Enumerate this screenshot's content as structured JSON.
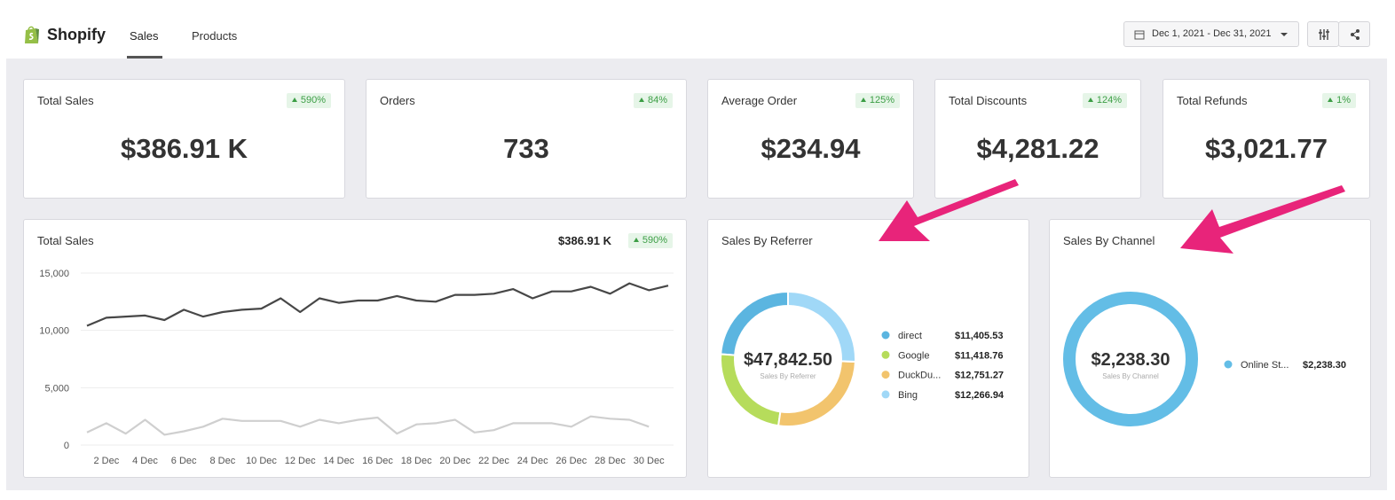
{
  "header": {
    "brand": "Shopify",
    "tabs": [
      "Sales",
      "Products"
    ],
    "date_range": "Dec 1, 2021 - Dec 31, 2021"
  },
  "kpis": [
    {
      "title": "Total Sales",
      "change": "590%",
      "value": "$386.91 K"
    },
    {
      "title": "Orders",
      "change": "84%",
      "value": "733"
    },
    {
      "title": "Average Order",
      "change": "125%",
      "value": "$234.94"
    },
    {
      "title": "Total Discounts",
      "change": "124%",
      "value": "$4,281.22"
    },
    {
      "title": "Total Refunds",
      "change": "1%",
      "value": "$3,021.77"
    }
  ],
  "chart_data": [
    {
      "type": "line",
      "title": "Total Sales",
      "total": "$386.91 K",
      "change": "590%",
      "categories": [
        null,
        "2 Dec",
        null,
        "4 Dec",
        null,
        "6 Dec",
        null,
        "8 Dec",
        null,
        "10 Dec",
        null,
        "12 Dec",
        null,
        "14 Dec",
        null,
        "16 Dec",
        null,
        "18 Dec",
        null,
        "20 Dec",
        null,
        "22 Dec",
        null,
        "24 Dec",
        null,
        "26 Dec",
        null,
        "28 Dec",
        null,
        "30 Dec",
        null
      ],
      "series": [
        {
          "color": "#474747",
          "values": [
            10400,
            11100,
            11200,
            11300,
            10900,
            11800,
            11200,
            11600,
            11800,
            11900,
            12800,
            11600,
            12800,
            12400,
            12600,
            12600,
            13000,
            12600,
            12500,
            13100,
            13100,
            13200,
            13600,
            12800,
            13400,
            13400,
            13800,
            13200,
            14100,
            13500,
            13900
          ]
        },
        {
          "color": "#cfcfcf",
          "values": [
            1100,
            1900,
            1000,
            2200,
            900,
            1200,
            1600,
            2300,
            2100,
            2100,
            2100,
            1600,
            2200,
            1900,
            2200,
            2400,
            1000,
            1800,
            1900,
            2200,
            1100,
            1300,
            1900,
            1900,
            1900,
            1600,
            2500,
            2300,
            2200,
            1600,
            null
          ]
        }
      ],
      "ylim": [
        0,
        15000
      ],
      "yticks": [
        0,
        {
          "value": 5000,
          "label": "5,000"
        },
        {
          "value": 10000,
          "label": "10,000"
        },
        {
          "value": 15000,
          "label": "15,000"
        }
      ],
      "grid": true
    },
    {
      "type": "donut",
      "title": "Sales By Referrer",
      "total": "$47,842.50",
      "total_label": "Sales By Referrer",
      "categories": [
        "direct",
        "Google",
        "DuckDu...",
        "Bing"
      ],
      "values": [
        11405.53,
        11418.76,
        12751.27,
        12266.94
      ],
      "value_labels": [
        "$11,405.53",
        "$11,418.76",
        "$12,751.27",
        "$12,266.94"
      ],
      "colors": [
        "#5bb5e0",
        "#b6dc5b",
        "#f2c46d",
        "#a0d8f7"
      ]
    },
    {
      "type": "donut",
      "title": "Sales By Channel",
      "total": "$2,238.30",
      "total_label": "Sales By Channel",
      "categories": [
        "Online St..."
      ],
      "values": [
        2238.3
      ],
      "value_labels": [
        "$2,238.30"
      ],
      "colors": [
        "#63bde6"
      ]
    }
  ]
}
